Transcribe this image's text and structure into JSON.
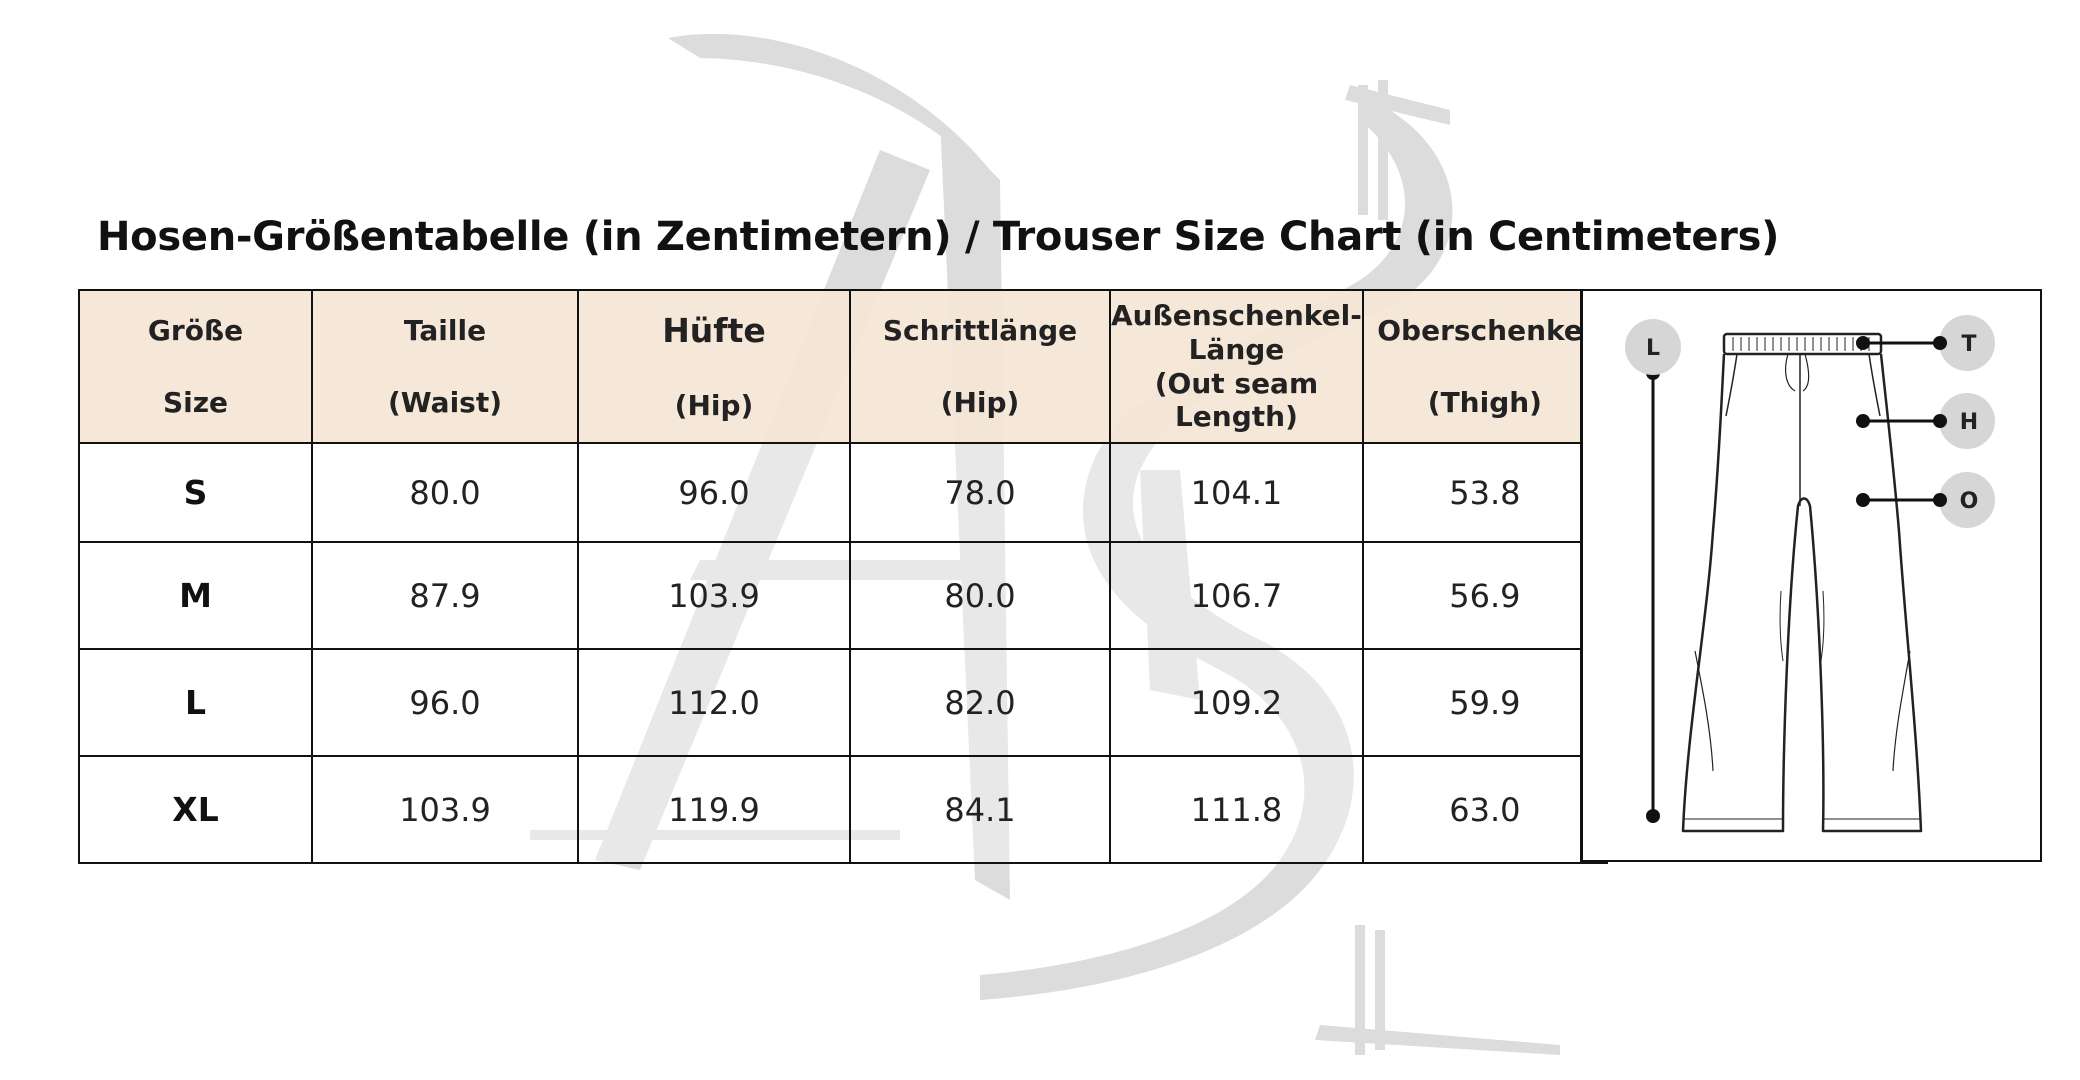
{
  "title": "Hosen-Größentabelle (in Zentimetern) / Trouser Size Chart (in Centimeters)",
  "table": {
    "headers": [
      {
        "line1": "Größe",
        "line2": "Size"
      },
      {
        "line1": "Taille",
        "line2": "(Waist)"
      },
      {
        "line1": "Hüfte",
        "line2": "(Hip)"
      },
      {
        "line1": "Schrittlänge",
        "line2": "(Hip)"
      },
      {
        "lines": [
          "Außenschenkel-",
          "Länge",
          "(Out seam",
          "Length)"
        ]
      },
      {
        "line1": "Oberschenkel",
        "line2": "(Thigh)"
      }
    ],
    "rows": [
      {
        "size": "S",
        "waist": "80.0",
        "hip": "96.0",
        "inseam": "78.0",
        "outseam": "104.1",
        "thigh": "53.8"
      },
      {
        "size": "M",
        "waist": "87.9",
        "hip": "103.9",
        "inseam": "80.0",
        "outseam": "106.7",
        "thigh": "56.9"
      },
      {
        "size": "L",
        "waist": "96.0",
        "hip": "112.0",
        "inseam": "82.0",
        "outseam": "109.2",
        "thigh": "59.9"
      },
      {
        "size": "XL",
        "waist": "103.9",
        "hip": "119.9",
        "inseam": "84.1",
        "outseam": "111.8",
        "thigh": "63.0"
      }
    ]
  },
  "diagram": {
    "labels": {
      "length": "L",
      "waist": "T",
      "hip": "H",
      "thigh": "O"
    }
  },
  "colors": {
    "header_bg": "#F4E6D5",
    "watermark": "#DDDDDD",
    "border": "#111111"
  }
}
